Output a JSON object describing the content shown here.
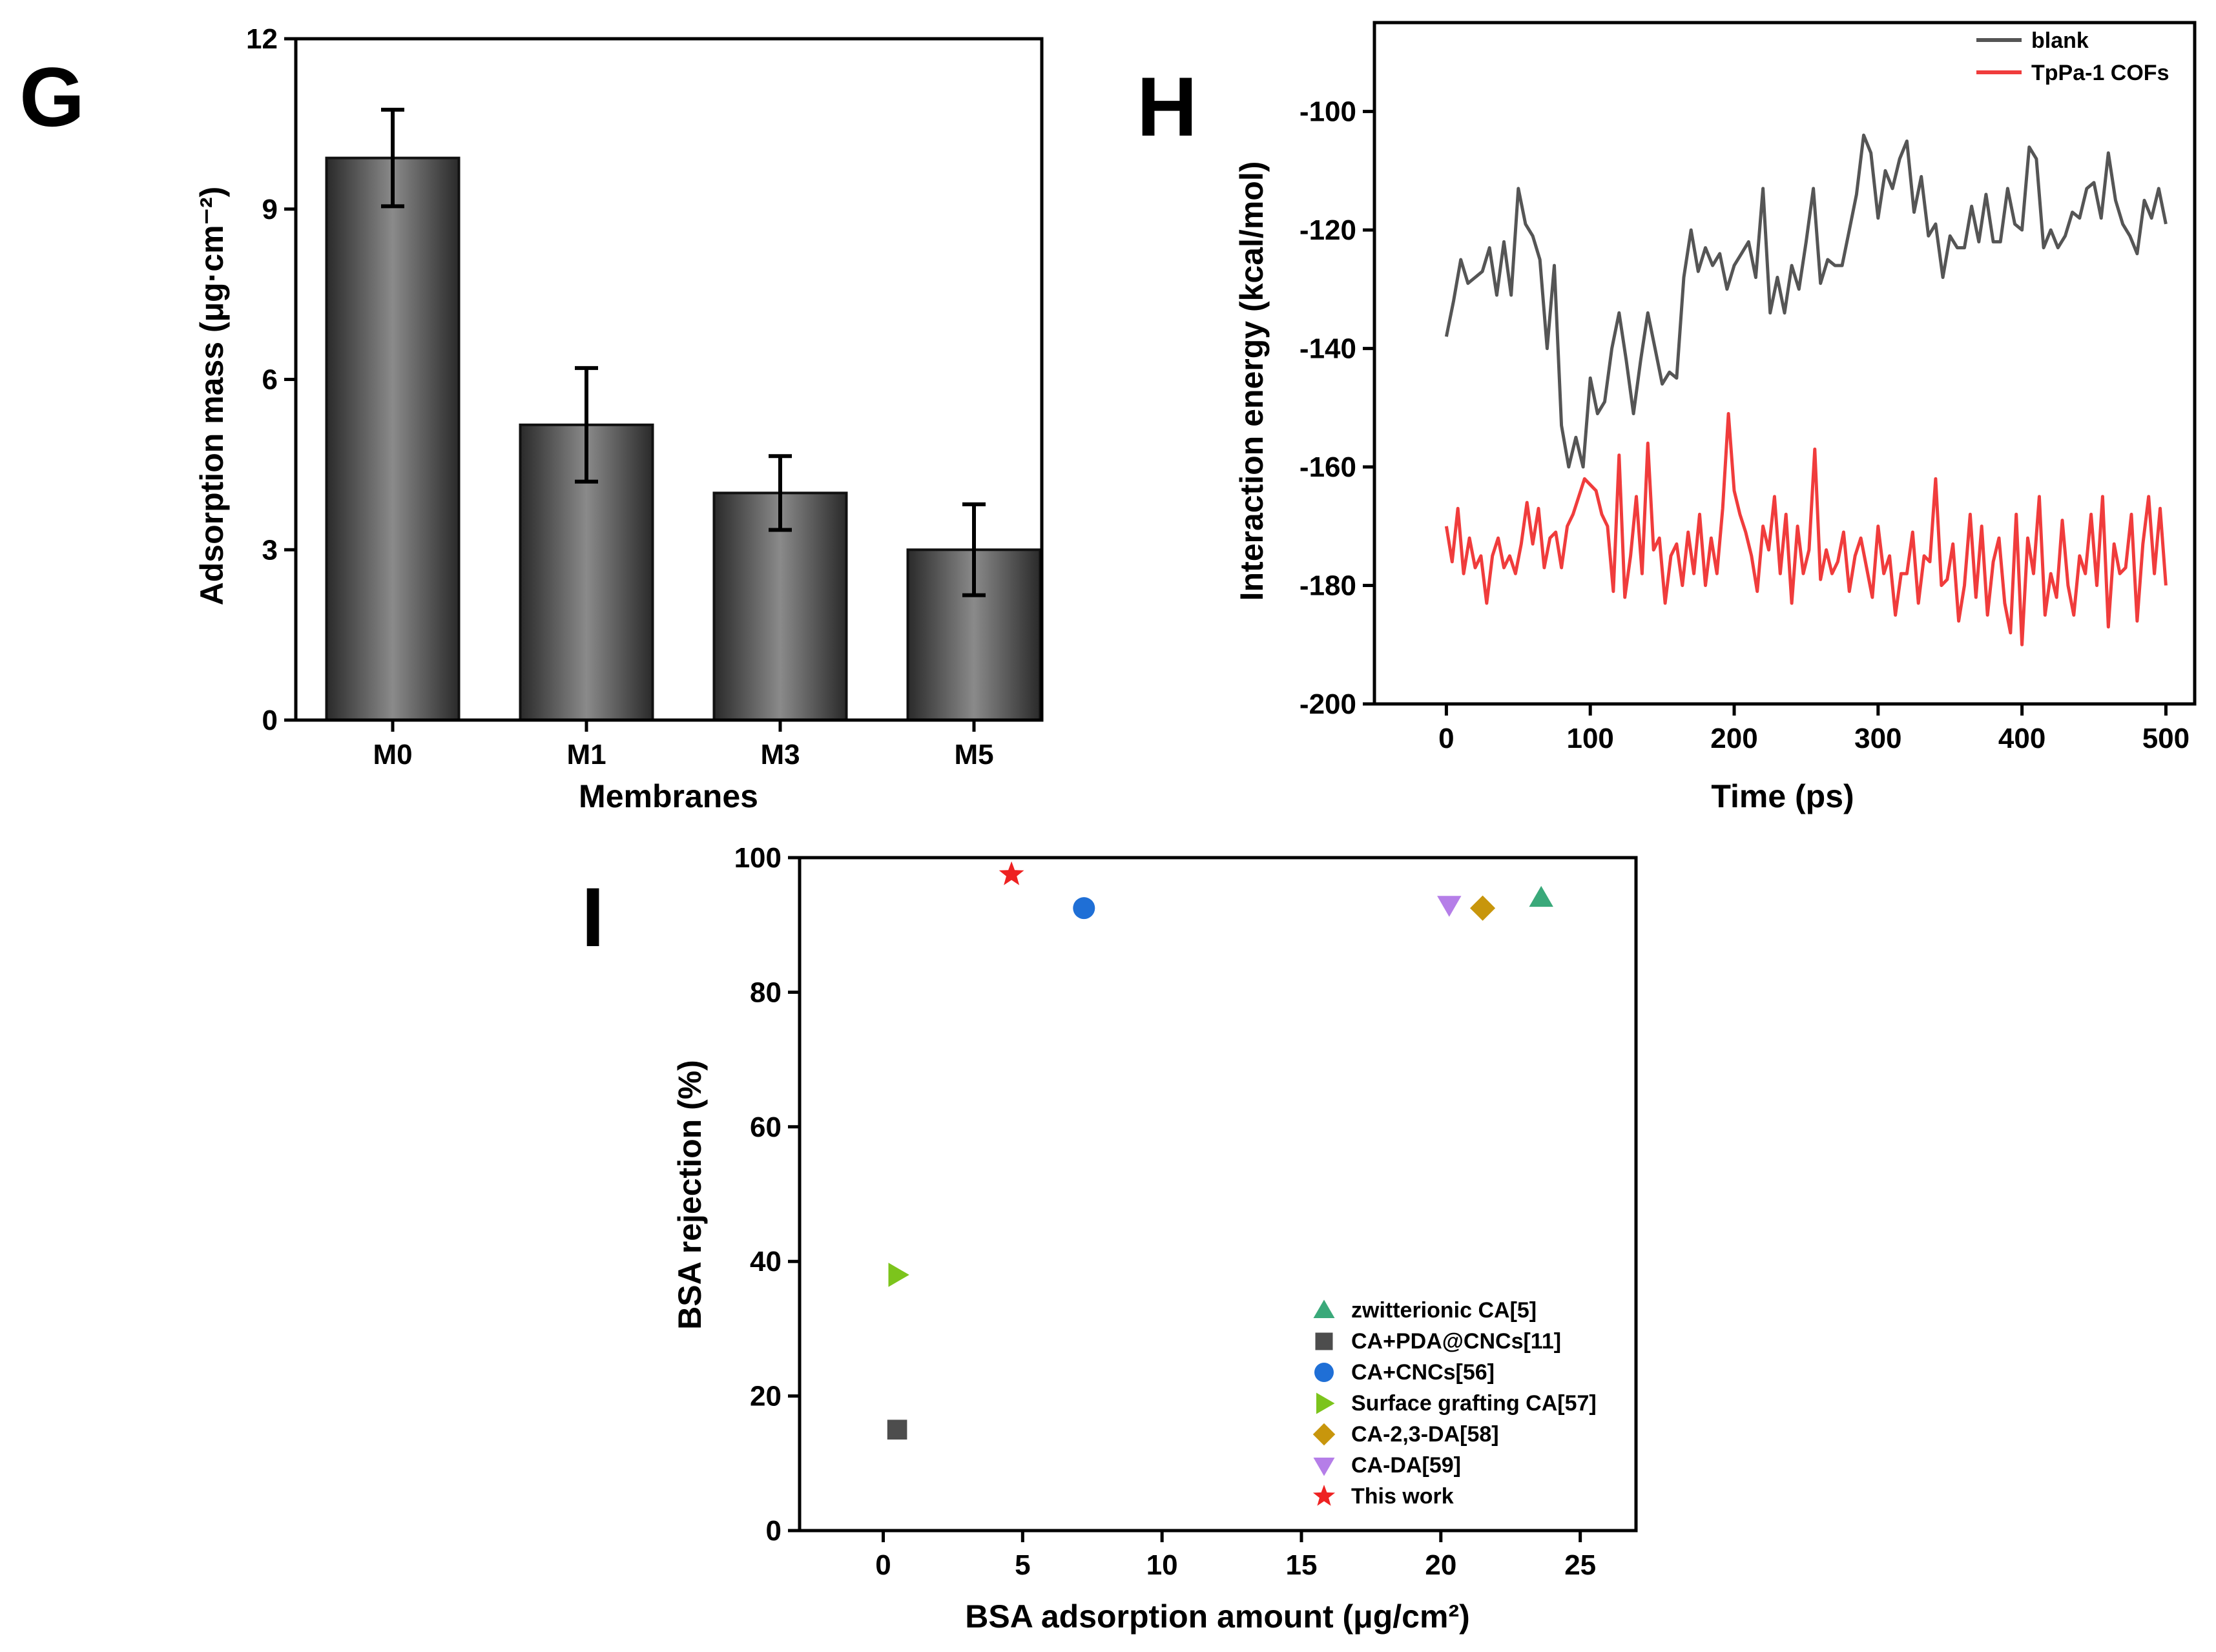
{
  "chart_data": [
    {
      "panel": "G",
      "type": "bar",
      "xlabel": "Membranes",
      "ylabel": "Adsorption mass (μg·cm⁻²)",
      "categories": [
        "M0",
        "M1",
        "M3",
        "M5"
      ],
      "values": [
        9.9,
        5.2,
        4.0,
        3.0
      ],
      "errors": [
        0.85,
        1.0,
        0.65,
        0.8
      ],
      "ylim": [
        0,
        12
      ],
      "yticks": [
        "0",
        "3",
        "6",
        "9",
        "12"
      ],
      "bar_color": "#505050"
    },
    {
      "panel": "H",
      "type": "line",
      "xlabel": "Time (ps)",
      "ylabel": "Interaction energy (kcal/mol)",
      "xlim": [
        -50,
        520
      ],
      "ylim": [
        -200,
        -85
      ],
      "xticks": [
        "0",
        "100",
        "200",
        "300",
        "400",
        "500"
      ],
      "yticks": [
        "-200",
        "-180",
        "-160",
        "-140",
        "-120",
        "-100"
      ],
      "legend_position": "top-right",
      "series": [
        {
          "name": "blank",
          "color": "#555555",
          "x": [
            0,
            5,
            10,
            15,
            20,
            25,
            30,
            35,
            40,
            45,
            50,
            55,
            60,
            65,
            70,
            75,
            80,
            85,
            90,
            95,
            100,
            105,
            110,
            115,
            120,
            125,
            130,
            135,
            140,
            145,
            150,
            155,
            160,
            165,
            170,
            175,
            180,
            185,
            190,
            195,
            200,
            205,
            210,
            215,
            220,
            225,
            230,
            235,
            240,
            245,
            250,
            255,
            260,
            265,
            270,
            275,
            280,
            285,
            290,
            295,
            300,
            305,
            310,
            315,
            320,
            325,
            330,
            335,
            340,
            345,
            350,
            355,
            360,
            365,
            370,
            375,
            380,
            385,
            390,
            395,
            400,
            405,
            410,
            415,
            420,
            425,
            430,
            435,
            440,
            445,
            450,
            455,
            460,
            465,
            470,
            475,
            480,
            485,
            490,
            495,
            500
          ],
          "y": [
            -138,
            -132,
            -125,
            -129,
            -128,
            -127,
            -123,
            -131,
            -122,
            -131,
            -113,
            -119,
            -121,
            -125,
            -140,
            -126,
            -153,
            -160,
            -155,
            -160,
            -145,
            -151,
            -149,
            -140,
            -134,
            -142,
            -151,
            -142,
            -134,
            -140,
            -146,
            -144,
            -145,
            -128,
            -120,
            -127,
            -123,
            -126,
            -124,
            -130,
            -126,
            -124,
            -122,
            -128,
            -113,
            -134,
            -128,
            -134,
            -126,
            -130,
            -122,
            -113,
            -129,
            -125,
            -126,
            -126,
            -120,
            -114,
            -104,
            -107,
            -118,
            -110,
            -113,
            -108,
            -105,
            -117,
            -111,
            -121,
            -119,
            -128,
            -121,
            -123,
            -123,
            -116,
            -122,
            -114,
            -122,
            -122,
            -113,
            -119,
            -120,
            -106,
            -108,
            -123,
            -120,
            -123,
            -121,
            -117,
            -118,
            -113,
            -112,
            -118,
            -107,
            -115,
            -119,
            -121,
            -124,
            -115,
            -118,
            -113,
            -119
          ]
        },
        {
          "name": "TpPa-1 COFs",
          "color": "#f03c3c",
          "x": [
            0,
            4,
            8,
            12,
            16,
            20,
            24,
            28,
            32,
            36,
            40,
            44,
            48,
            52,
            56,
            60,
            64,
            68,
            72,
            76,
            80,
            84,
            88,
            92,
            96,
            100,
            104,
            108,
            112,
            116,
            120,
            124,
            128,
            132,
            136,
            140,
            144,
            148,
            152,
            156,
            160,
            164,
            168,
            172,
            176,
            180,
            184,
            188,
            192,
            196,
            200,
            204,
            208,
            212,
            216,
            220,
            224,
            228,
            232,
            236,
            240,
            244,
            248,
            252,
            256,
            260,
            264,
            268,
            272,
            276,
            280,
            284,
            288,
            292,
            296,
            300,
            304,
            308,
            312,
            316,
            320,
            324,
            328,
            332,
            336,
            340,
            344,
            348,
            352,
            356,
            360,
            364,
            368,
            372,
            376,
            380,
            384,
            388,
            392,
            396,
            400,
            404,
            408,
            412,
            416,
            420,
            424,
            428,
            432,
            436,
            440,
            444,
            448,
            452,
            456,
            460,
            464,
            468,
            472,
            476,
            480,
            484,
            488,
            492,
            496,
            500
          ],
          "y": [
            -170,
            -176,
            -167,
            -178,
            -172,
            -177,
            -175,
            -183,
            -175,
            -172,
            -177,
            -175,
            -178,
            -173,
            -166,
            -173,
            -167,
            -177,
            -172,
            -171,
            -177,
            -170,
            -168,
            -165,
            -162,
            -163,
            -164,
            -168,
            -170,
            -181,
            -158,
            -182,
            -175,
            -165,
            -178,
            -156,
            -174,
            -172,
            -183,
            -175,
            -173,
            -180,
            -171,
            -178,
            -168,
            -180,
            -172,
            -178,
            -167,
            -151,
            -164,
            -168,
            -171,
            -175,
            -181,
            -170,
            -174,
            -165,
            -178,
            -168,
            -183,
            -170,
            -178,
            -174,
            -157,
            -179,
            -174,
            -178,
            -176,
            -171,
            -181,
            -175,
            -172,
            -177,
            -182,
            -170,
            -178,
            -175,
            -185,
            -178,
            -178,
            -171,
            -183,
            -175,
            -176,
            -162,
            -180,
            -179,
            -173,
            -186,
            -180,
            -168,
            -182,
            -170,
            -185,
            -176,
            -172,
            -183,
            -188,
            -168,
            -190,
            -172,
            -178,
            -165,
            -185,
            -178,
            -182,
            -169,
            -180,
            -185,
            -175,
            -178,
            -168,
            -180,
            -165,
            -187,
            -173,
            -178,
            -177,
            -168,
            -186,
            -173,
            -165,
            -178,
            -167,
            -180
          ]
        }
      ]
    },
    {
      "panel": "I",
      "type": "scatter",
      "xlabel": "BSA adsorption amount (μg/cm²)",
      "ylabel": "BSA rejection (%)",
      "xlim": [
        -3,
        27
      ],
      "ylim": [
        0,
        100
      ],
      "xticks": [
        "0",
        "5",
        "10",
        "15",
        "20",
        "25"
      ],
      "yticks": [
        "0",
        "20",
        "40",
        "60",
        "80",
        "100"
      ],
      "legend_position": "bottom-right",
      "series": [
        {
          "name": "zwitterionic CA[5]",
          "marker": "triangle-up",
          "color": "#3aa97a",
          "x": [
            23.6
          ],
          "y": [
            94
          ]
        },
        {
          "name": "CA+PDA@CNCs[11]",
          "marker": "square",
          "color": "#4d4d4d",
          "x": [
            0.5
          ],
          "y": [
            15
          ]
        },
        {
          "name": "CA+CNCs[56]",
          "marker": "circle",
          "color": "#1f6fd6",
          "x": [
            7.2
          ],
          "y": [
            92.5
          ]
        },
        {
          "name": "Surface grafting CA[57]",
          "marker": "triangle-right",
          "color": "#7cc41c",
          "x": [
            0.5
          ],
          "y": [
            38
          ]
        },
        {
          "name": "CA-2,3-DA[58]",
          "marker": "diamond",
          "color": "#c8960c",
          "x": [
            21.5
          ],
          "y": [
            92.5
          ]
        },
        {
          "name": "CA-DA[59]",
          "marker": "triangle-down",
          "color": "#b57ee8",
          "x": [
            20.3
          ],
          "y": [
            93
          ]
        },
        {
          "name": "This work",
          "marker": "star",
          "color": "#ee2222",
          "x": [
            4.6
          ],
          "y": [
            97.5
          ]
        }
      ]
    }
  ],
  "panel_letters": {
    "g": "G",
    "h": "H",
    "i": "I"
  }
}
